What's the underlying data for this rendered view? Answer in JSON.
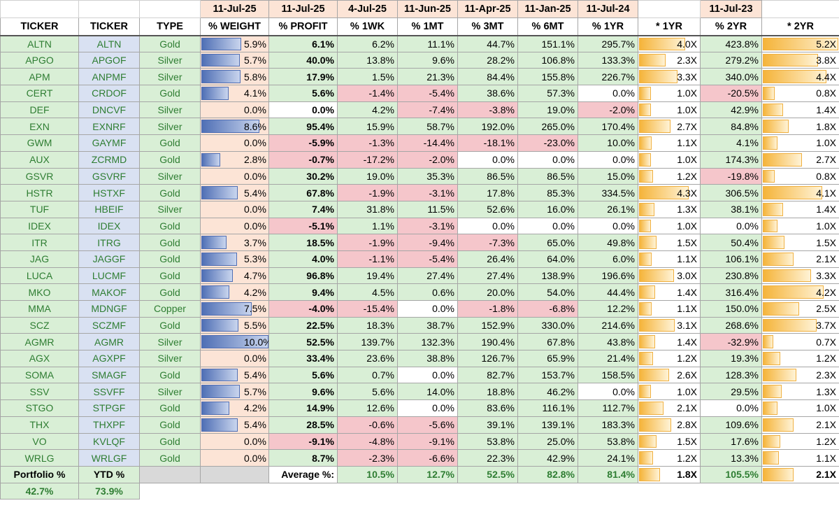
{
  "colors": {
    "green_cell": "#d9efd6",
    "red_cell": "#f5c6cb",
    "blue_cell": "#d9e1f2",
    "peach_cell": "#fce4d6",
    "ticker_text": "#2e7d32",
    "weight_bar": "#4f6fb5",
    "multiple_bar": "#f5b43a"
  },
  "dates": [
    "11-Jul-25",
    "11-Jul-25",
    "4-Jul-25",
    "11-Jun-25",
    "11-Apr-25",
    "11-Jan-25",
    "11-Jul-24",
    "11-Jul-23"
  ],
  "headers": [
    "TICKER",
    "TICKER",
    "TYPE",
    "% WEIGHT",
    "% PROFIT",
    "% 1WK",
    "% 1MT",
    "% 3MT",
    "% 6MT",
    "% 1YR",
    "* 1YR",
    "% 2YR",
    "* 2YR"
  ],
  "rows": [
    {
      "t1": "ALTN",
      "t2": "ALTN",
      "type": "Gold",
      "weight": "5.9%",
      "wpct": 59,
      "profit": "6.1%",
      "wk": "6.2%",
      "mt": "11.1%",
      "m3": "44.7%",
      "m6": "151.1%",
      "y1": "295.7%",
      "x1": "4.0X",
      "x1v": 4.0,
      "y2": "423.8%",
      "x2": "5.2X",
      "x2v": 5.2,
      "cls": [
        "green",
        "green",
        "green",
        "green",
        "green",
        "green",
        "green"
      ]
    },
    {
      "t1": "APGO",
      "t2": "APGOF",
      "type": "Silver",
      "weight": "5.7%",
      "wpct": 57,
      "profit": "40.0%",
      "wk": "13.8%",
      "mt": "9.6%",
      "m3": "28.2%",
      "m6": "106.8%",
      "y1": "133.3%",
      "x1": "2.3X",
      "x1v": 2.3,
      "y2": "279.2%",
      "x2": "3.8X",
      "x2v": 3.8,
      "cls": [
        "green",
        "green",
        "green",
        "green",
        "green",
        "green",
        "green"
      ]
    },
    {
      "t1": "APM",
      "t2": "ANPMF",
      "type": "Silver",
      "weight": "5.8%",
      "wpct": 58,
      "profit": "17.9%",
      "wk": "1.5%",
      "mt": "21.3%",
      "m3": "84.4%",
      "m6": "155.8%",
      "y1": "226.7%",
      "x1": "3.3X",
      "x1v": 3.3,
      "y2": "340.0%",
      "x2": "4.4X",
      "x2v": 4.4,
      "cls": [
        "green",
        "green",
        "green",
        "green",
        "green",
        "green",
        "green"
      ]
    },
    {
      "t1": "CERT",
      "t2": "CRDOF",
      "type": "Gold",
      "weight": "4.1%",
      "wpct": 41,
      "profit": "5.6%",
      "wk": "-1.4%",
      "mt": "-5.4%",
      "m3": "38.6%",
      "m6": "57.3%",
      "y1": "0.0%",
      "x1": "1.0X",
      "x1v": 1.0,
      "y2": "-20.5%",
      "x2": "0.8X",
      "x2v": 0.8,
      "cls": [
        "green",
        "red",
        "red",
        "green",
        "green",
        "white",
        "red"
      ]
    },
    {
      "t1": "DEF",
      "t2": "DNCVF",
      "type": "Silver",
      "weight": "0.0%",
      "wpct": 0,
      "profit": "0.0%",
      "wk": "4.2%",
      "mt": "-7.4%",
      "m3": "-3.8%",
      "m6": "19.0%",
      "y1": "-2.0%",
      "x1": "1.0X",
      "x1v": 1.0,
      "y2": "42.9%",
      "x2": "1.4X",
      "x2v": 1.4,
      "cls": [
        "white",
        "green",
        "red",
        "red",
        "green",
        "red",
        "green"
      ]
    },
    {
      "t1": "EXN",
      "t2": "EXNRF",
      "type": "Silver",
      "weight": "8.6%",
      "wpct": 86,
      "profit": "95.4%",
      "wk": "15.9%",
      "mt": "58.7%",
      "m3": "192.0%",
      "m6": "265.0%",
      "y1": "170.4%",
      "x1": "2.7X",
      "x1v": 2.7,
      "y2": "84.8%",
      "x2": "1.8X",
      "x2v": 1.8,
      "cls": [
        "green",
        "green",
        "green",
        "green",
        "green",
        "green",
        "green"
      ]
    },
    {
      "t1": "GWM",
      "t2": "GAYMF",
      "type": "Gold",
      "weight": "0.0%",
      "wpct": 0,
      "profit": "-5.9%",
      "wk": "-1.3%",
      "mt": "-14.4%",
      "m3": "-18.1%",
      "m6": "-23.0%",
      "y1": "10.0%",
      "x1": "1.1X",
      "x1v": 1.1,
      "y2": "4.1%",
      "x2": "1.0X",
      "x2v": 1.0,
      "cls": [
        "red",
        "red",
        "red",
        "red",
        "red",
        "green",
        "green"
      ]
    },
    {
      "t1": "AUX",
      "t2": "ZCRMD",
      "type": "Gold",
      "weight": "2.8%",
      "wpct": 28,
      "profit": "-0.7%",
      "wk": "-17.2%",
      "mt": "-2.0%",
      "m3": "0.0%",
      "m6": "0.0%",
      "y1": "0.0%",
      "x1": "1.0X",
      "x1v": 1.0,
      "y2": "174.3%",
      "x2": "2.7X",
      "x2v": 2.7,
      "cls": [
        "red",
        "red",
        "red",
        "white",
        "white",
        "white",
        "green"
      ]
    },
    {
      "t1": "GSVR",
      "t2": "GSVRF",
      "type": "Silver",
      "weight": "0.0%",
      "wpct": 0,
      "profit": "30.2%",
      "wk": "19.0%",
      "mt": "35.3%",
      "m3": "86.5%",
      "m6": "86.5%",
      "y1": "15.0%",
      "x1": "1.2X",
      "x1v": 1.2,
      "y2": "-19.8%",
      "x2": "0.8X",
      "x2v": 0.8,
      "cls": [
        "green",
        "green",
        "green",
        "green",
        "green",
        "green",
        "red"
      ]
    },
    {
      "t1": "HSTR",
      "t2": "HSTXF",
      "type": "Gold",
      "weight": "5.4%",
      "wpct": 54,
      "profit": "67.8%",
      "wk": "-1.9%",
      "mt": "-3.1%",
      "m3": "17.8%",
      "m6": "85.3%",
      "y1": "334.5%",
      "x1": "4.3X",
      "x1v": 4.3,
      "y2": "306.5%",
      "x2": "4.1X",
      "x2v": 4.1,
      "cls": [
        "green",
        "red",
        "red",
        "green",
        "green",
        "green",
        "green"
      ]
    },
    {
      "t1": "TUF",
      "t2": "HBEIF",
      "type": "Silver",
      "weight": "0.0%",
      "wpct": 0,
      "profit": "7.4%",
      "wk": "31.8%",
      "mt": "11.5%",
      "m3": "52.6%",
      "m6": "16.0%",
      "y1": "26.1%",
      "x1": "1.3X",
      "x1v": 1.3,
      "y2": "38.1%",
      "x2": "1.4X",
      "x2v": 1.4,
      "cls": [
        "green",
        "green",
        "green",
        "green",
        "green",
        "green",
        "green"
      ]
    },
    {
      "t1": "IDEX",
      "t2": "IDEX",
      "type": "Gold",
      "weight": "0.0%",
      "wpct": 0,
      "profit": "-5.1%",
      "wk": "1.1%",
      "mt": "-3.1%",
      "m3": "0.0%",
      "m6": "0.0%",
      "y1": "0.0%",
      "x1": "1.0X",
      "x1v": 1.0,
      "y2": "0.0%",
      "x2": "1.0X",
      "x2v": 1.0,
      "cls": [
        "red",
        "green",
        "red",
        "white",
        "white",
        "white",
        "white"
      ]
    },
    {
      "t1": "ITR",
      "t2": "ITRG",
      "type": "Gold",
      "weight": "3.7%",
      "wpct": 37,
      "profit": "18.5%",
      "wk": "-1.9%",
      "mt": "-9.4%",
      "m3": "-7.3%",
      "m6": "65.0%",
      "y1": "49.8%",
      "x1": "1.5X",
      "x1v": 1.5,
      "y2": "50.4%",
      "x2": "1.5X",
      "x2v": 1.5,
      "cls": [
        "green",
        "red",
        "red",
        "red",
        "green",
        "green",
        "green"
      ]
    },
    {
      "t1": "JAG",
      "t2": "JAGGF",
      "type": "Gold",
      "weight": "5.3%",
      "wpct": 53,
      "profit": "4.0%",
      "wk": "-1.1%",
      "mt": "-5.4%",
      "m3": "26.4%",
      "m6": "64.0%",
      "y1": "6.0%",
      "x1": "1.1X",
      "x1v": 1.1,
      "y2": "106.1%",
      "x2": "2.1X",
      "x2v": 2.1,
      "cls": [
        "green",
        "red",
        "red",
        "green",
        "green",
        "green",
        "green"
      ]
    },
    {
      "t1": "LUCA",
      "t2": "LUCMF",
      "type": "Gold",
      "weight": "4.7%",
      "wpct": 47,
      "profit": "96.8%",
      "wk": "19.4%",
      "mt": "27.4%",
      "m3": "27.4%",
      "m6": "138.9%",
      "y1": "196.6%",
      "x1": "3.0X",
      "x1v": 3.0,
      "y2": "230.8%",
      "x2": "3.3X",
      "x2v": 3.3,
      "cls": [
        "green",
        "green",
        "green",
        "green",
        "green",
        "green",
        "green"
      ]
    },
    {
      "t1": "MKO",
      "t2": "MAKOF",
      "type": "Gold",
      "weight": "4.2%",
      "wpct": 42,
      "profit": "9.4%",
      "wk": "4.5%",
      "mt": "0.6%",
      "m3": "20.0%",
      "m6": "54.0%",
      "y1": "44.4%",
      "x1": "1.4X",
      "x1v": 1.4,
      "y2": "316.4%",
      "x2": "4.2X",
      "x2v": 4.2,
      "cls": [
        "green",
        "green",
        "green",
        "green",
        "green",
        "green",
        "green"
      ]
    },
    {
      "t1": "MMA",
      "t2": "MDNGF",
      "type": "Copper",
      "weight": "7.5%",
      "wpct": 75,
      "profit": "-4.0%",
      "wk": "-15.4%",
      "mt": "0.0%",
      "m3": "-1.8%",
      "m6": "-6.8%",
      "y1": "12.2%",
      "x1": "1.1X",
      "x1v": 1.1,
      "y2": "150.0%",
      "x2": "2.5X",
      "x2v": 2.5,
      "cls": [
        "red",
        "red",
        "white",
        "red",
        "red",
        "green",
        "green"
      ]
    },
    {
      "t1": "SCZ",
      "t2": "SCZMF",
      "type": "Gold",
      "weight": "5.5%",
      "wpct": 55,
      "profit": "22.5%",
      "wk": "18.3%",
      "mt": "38.7%",
      "m3": "152.9%",
      "m6": "330.0%",
      "y1": "214.6%",
      "x1": "3.1X",
      "x1v": 3.1,
      "y2": "268.6%",
      "x2": "3.7X",
      "x2v": 3.7,
      "cls": [
        "green",
        "green",
        "green",
        "green",
        "green",
        "green",
        "green"
      ]
    },
    {
      "t1": "AGMR",
      "t2": "AGMR",
      "type": "Silver",
      "weight": "10.0%",
      "wpct": 100,
      "profit": "52.5%",
      "wk": "139.7%",
      "mt": "132.3%",
      "m3": "190.4%",
      "m6": "67.8%",
      "y1": "43.8%",
      "x1": "1.4X",
      "x1v": 1.4,
      "y2": "-32.9%",
      "x2": "0.7X",
      "x2v": 0.7,
      "cls": [
        "green",
        "green",
        "green",
        "green",
        "green",
        "green",
        "red"
      ]
    },
    {
      "t1": "AGX",
      "t2": "AGXPF",
      "type": "Silver",
      "weight": "0.0%",
      "wpct": 0,
      "profit": "33.4%",
      "wk": "23.6%",
      "mt": "38.8%",
      "m3": "126.7%",
      "m6": "65.9%",
      "y1": "21.4%",
      "x1": "1.2X",
      "x1v": 1.2,
      "y2": "19.3%",
      "x2": "1.2X",
      "x2v": 1.2,
      "cls": [
        "green",
        "green",
        "green",
        "green",
        "green",
        "green",
        "green"
      ]
    },
    {
      "t1": "SOMA",
      "t2": "SMAGF",
      "type": "Gold",
      "weight": "5.4%",
      "wpct": 54,
      "profit": "5.6%",
      "wk": "0.7%",
      "mt": "0.0%",
      "m3": "82.7%",
      "m6": "153.7%",
      "y1": "158.5%",
      "x1": "2.6X",
      "x1v": 2.6,
      "y2": "128.3%",
      "x2": "2.3X",
      "x2v": 2.3,
      "cls": [
        "green",
        "green",
        "white",
        "green",
        "green",
        "green",
        "green"
      ]
    },
    {
      "t1": "SSV",
      "t2": "SSVFF",
      "type": "Silver",
      "weight": "5.7%",
      "wpct": 57,
      "profit": "9.6%",
      "wk": "5.6%",
      "mt": "14.0%",
      "m3": "18.8%",
      "m6": "46.2%",
      "y1": "0.0%",
      "x1": "1.0X",
      "x1v": 1.0,
      "y2": "29.5%",
      "x2": "1.3X",
      "x2v": 1.3,
      "cls": [
        "green",
        "green",
        "green",
        "green",
        "green",
        "white",
        "green"
      ]
    },
    {
      "t1": "STGO",
      "t2": "STPGF",
      "type": "Gold",
      "weight": "4.2%",
      "wpct": 42,
      "profit": "14.9%",
      "wk": "12.6%",
      "mt": "0.0%",
      "m3": "83.6%",
      "m6": "116.1%",
      "y1": "112.7%",
      "x1": "2.1X",
      "x1v": 2.1,
      "y2": "0.0%",
      "x2": "1.0X",
      "x2v": 1.0,
      "cls": [
        "green",
        "green",
        "white",
        "green",
        "green",
        "green",
        "white"
      ]
    },
    {
      "t1": "THX",
      "t2": "THXPF",
      "type": "Gold",
      "weight": "5.4%",
      "wpct": 54,
      "profit": "28.5%",
      "wk": "-0.6%",
      "mt": "-5.6%",
      "m3": "39.1%",
      "m6": "139.1%",
      "y1": "183.3%",
      "x1": "2.8X",
      "x1v": 2.8,
      "y2": "109.6%",
      "x2": "2.1X",
      "x2v": 2.1,
      "cls": [
        "green",
        "red",
        "red",
        "green",
        "green",
        "green",
        "green"
      ]
    },
    {
      "t1": "VO",
      "t2": "KVLQF",
      "type": "Gold",
      "weight": "0.0%",
      "wpct": 0,
      "profit": "-9.1%",
      "wk": "-4.8%",
      "mt": "-9.1%",
      "m3": "53.8%",
      "m6": "25.0%",
      "y1": "53.8%",
      "x1": "1.5X",
      "x1v": 1.5,
      "y2": "17.6%",
      "x2": "1.2X",
      "x2v": 1.2,
      "cls": [
        "red",
        "red",
        "red",
        "green",
        "green",
        "green",
        "green"
      ]
    },
    {
      "t1": "WRLG",
      "t2": "WRLGF",
      "type": "Gold",
      "weight": "0.0%",
      "wpct": 0,
      "profit": "8.7%",
      "wk": "-2.3%",
      "mt": "-6.6%",
      "m3": "22.3%",
      "m6": "42.9%",
      "y1": "24.1%",
      "x1": "1.2X",
      "x1v": 1.2,
      "y2": "13.3%",
      "x2": "1.1X",
      "x2v": 1.1,
      "cls": [
        "green",
        "red",
        "red",
        "green",
        "green",
        "green",
        "green"
      ]
    }
  ],
  "footer": {
    "portfolio_label": "Portfolio %",
    "ytd_label": "YTD %",
    "average_label": "Average %:",
    "avg_wk": "10.5%",
    "avg_mt": "12.7%",
    "avg_m3": "52.5%",
    "avg_m6": "82.8%",
    "avg_y1": "81.4%",
    "avg_x1": "1.8X",
    "avg_x1v": 1.8,
    "avg_y2": "105.5%",
    "avg_x2": "2.1X",
    "avg_x2v": 2.1,
    "portfolio_value": "42.7%",
    "ytd_value": "73.9%"
  }
}
